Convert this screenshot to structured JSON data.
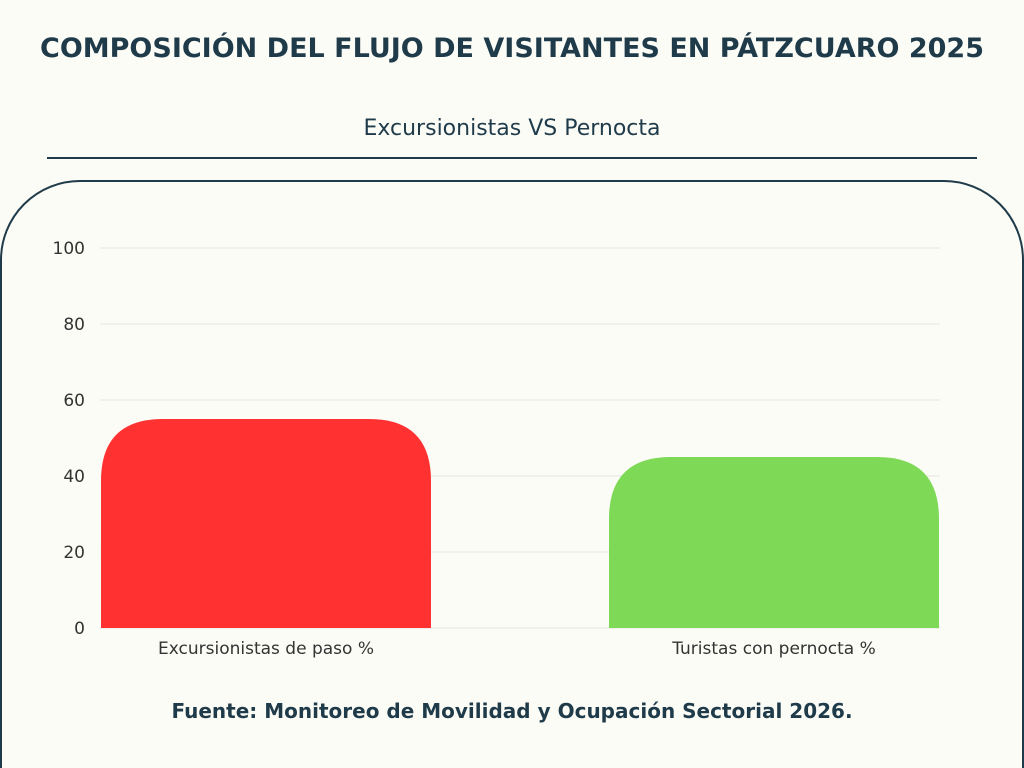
{
  "header": {
    "title": "COMPOSICIÓN DEL FLUJO DE VISITANTES EN PÁTZCUARO 2025",
    "subtitle": "Excursionistas VS Pernocta"
  },
  "footer": {
    "source": "Fuente: Monitoreo de Movilidad y Ocupación Sectorial 2026."
  },
  "colors": {
    "background": "#fcfcf7",
    "text": "#1f3b4a",
    "grid": "#e6e6e0",
    "bar_excursionistas": "#ff3131",
    "bar_pernocta": "#7ed957"
  },
  "chart_data": {
    "type": "bar",
    "title": "COMPOSICIÓN DEL FLUJO DE VISITANTES EN PÁTZCUARO 2025",
    "subtitle": "Excursionistas VS Pernocta",
    "categories": [
      "Excursionistas de paso %",
      "Turistas con pernocta %"
    ],
    "values": [
      55,
      45
    ],
    "bar_colors": [
      "#ff3131",
      "#7ed957"
    ],
    "yticks": [
      0,
      20,
      40,
      60,
      80,
      100
    ],
    "ylim": [
      0,
      100
    ],
    "grid": true,
    "legend": "none"
  }
}
